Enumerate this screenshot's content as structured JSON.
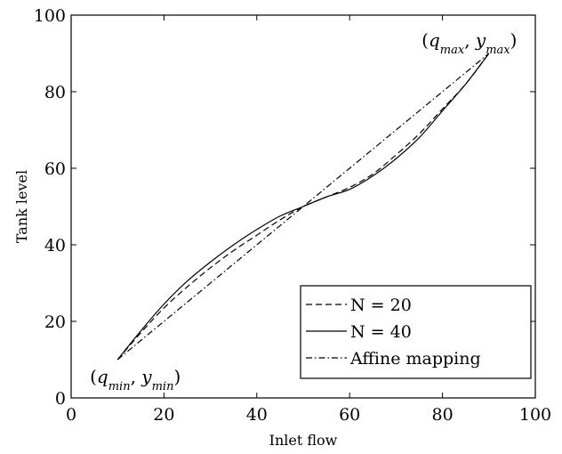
{
  "chart_data": {
    "type": "line",
    "title": "",
    "xlabel": "Inlet flow",
    "ylabel": "Tank level",
    "xlim": [
      0,
      100
    ],
    "ylim": [
      0,
      100
    ],
    "x_ticks": [
      0,
      20,
      40,
      60,
      80,
      100
    ],
    "y_ticks": [
      0,
      20,
      40,
      60,
      80,
      100
    ],
    "grid": false,
    "legend_position": "bottom-right",
    "series": [
      {
        "name": "N  = 20",
        "style": "dashed",
        "color": "#000000",
        "x": [
          10,
          15,
          20,
          25,
          30,
          35,
          40,
          45,
          50,
          55,
          60,
          65,
          70,
          75,
          80,
          85,
          90
        ],
        "y": [
          10,
          17,
          23.5,
          29,
          34,
          38.5,
          42.5,
          46.5,
          50,
          52.5,
          55,
          58.5,
          63.5,
          69,
          75.5,
          82,
          90
        ]
      },
      {
        "name": "N  = 40",
        "style": "solid",
        "color": "#000000",
        "x": [
          10,
          15,
          20,
          25,
          30,
          35,
          40,
          45,
          50,
          55,
          60,
          65,
          70,
          75,
          80,
          85,
          90
        ],
        "y": [
          10,
          17.5,
          24.5,
          30.5,
          35.5,
          40,
          44,
          47.5,
          50,
          52.5,
          54.5,
          58,
          62.5,
          68,
          75,
          82,
          90
        ]
      },
      {
        "name": "Affine mapping",
        "style": "dashdot",
        "color": "#000000",
        "x": [
          10,
          90
        ],
        "y": [
          10,
          90
        ]
      }
    ],
    "annotations": [
      {
        "text_open": "(",
        "var1": "q",
        "sub1": "min",
        "comma": ", ",
        "var2": "y",
        "sub2": "min",
        "text_close": ")",
        "at": [
          10,
          10
        ],
        "anchor": "below-left"
      },
      {
        "text_open": "(",
        "var1": "q",
        "sub1": "max",
        "comma": ", ",
        "var2": "y",
        "sub2": "max",
        "text_close": ")",
        "at": [
          90,
          90
        ],
        "anchor": "above-left"
      }
    ]
  }
}
